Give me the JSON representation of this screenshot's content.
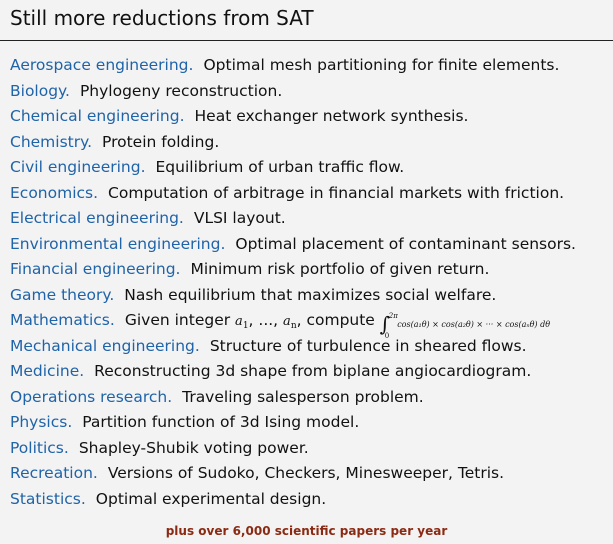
{
  "title": "Still more reductions from SAT",
  "items": [
    {
      "field": "Aerospace engineering.",
      "desc": "Optimal mesh partitioning for finite elements."
    },
    {
      "field": "Biology.",
      "desc": "Phylogeny reconstruction."
    },
    {
      "field": "Chemical engineering.",
      "desc": "Heat exchanger network synthesis."
    },
    {
      "field": "Chemistry.",
      "desc": "Protein folding."
    },
    {
      "field": "Civil engineering.",
      "desc": "Equilibrium of urban traffic flow."
    },
    {
      "field": "Economics.",
      "desc": "Computation of arbitrage in financial markets with friction."
    },
    {
      "field": "Electrical engineering.",
      "desc": "VLSI layout."
    },
    {
      "field": "Environmental engineering.",
      "desc": "Optimal placement of contaminant sensors."
    },
    {
      "field": "Financial engineering.",
      "desc": "Minimum risk portfolio of given return."
    },
    {
      "field": "Game theory.",
      "desc": "Nash equilibrium that maximizes social welfare."
    },
    {
      "field": "Mathematics.",
      "desc": "Given integer"
    },
    {
      "field": "Mechanical engineering.",
      "desc": "Structure of turbulence in sheared flows."
    },
    {
      "field": "Medicine.",
      "desc": "Reconstructing 3d shape from biplane angiocardiogram."
    },
    {
      "field": "Operations research.",
      "desc": "Traveling salesperson problem."
    },
    {
      "field": "Physics.",
      "desc": "Partition function of 3d Ising model."
    },
    {
      "field": "Politics.",
      "desc": "Shapley-Shubik voting power."
    },
    {
      "field": "Recreation.",
      "desc": "Versions of Sudoko, Checkers, Minesweeper, Tetris."
    },
    {
      "field": "Statistics.",
      "desc": "Optimal experimental design."
    }
  ],
  "math": {
    "a1": "a",
    "a1_sub": "1",
    "mid": ", ..., ",
    "an": "a",
    "an_sub": "n",
    "compute": ", compute",
    "int_upper": "2π",
    "int_lower": "0",
    "integrand": "cos(a₁θ) × cos(a₂θ) × ··· × cos(aₙθ) dθ"
  },
  "footer": "plus over 6,000 scientific papers per year"
}
